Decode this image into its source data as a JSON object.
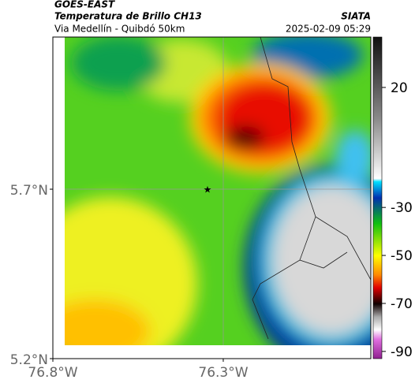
{
  "header": {
    "title": "GOES-EAST",
    "subtitle": "Temperatura de Brillo CH13",
    "location": "Via Medellín - Quibdó 50km",
    "source": "SIATA",
    "datetime": "2025-02-09 05:29"
  },
  "map": {
    "latlim": [
      5.2,
      6.149
    ],
    "lonlim": [
      -76.8,
      -75.867
    ],
    "latticks": [
      {
        "value": 5.7,
        "label": "5.7°N"
      },
      {
        "value": 5.2,
        "label": "5.2°N"
      }
    ],
    "lonticks": [
      {
        "value": -76.8,
        "label": "76.8°W"
      },
      {
        "value": -76.3,
        "label": "76.3°W"
      }
    ]
  },
  "colorbar": {
    "range": [
      -93,
      41
    ],
    "ticks": [
      20,
      -30,
      -50,
      -70,
      -90
    ]
  }
}
